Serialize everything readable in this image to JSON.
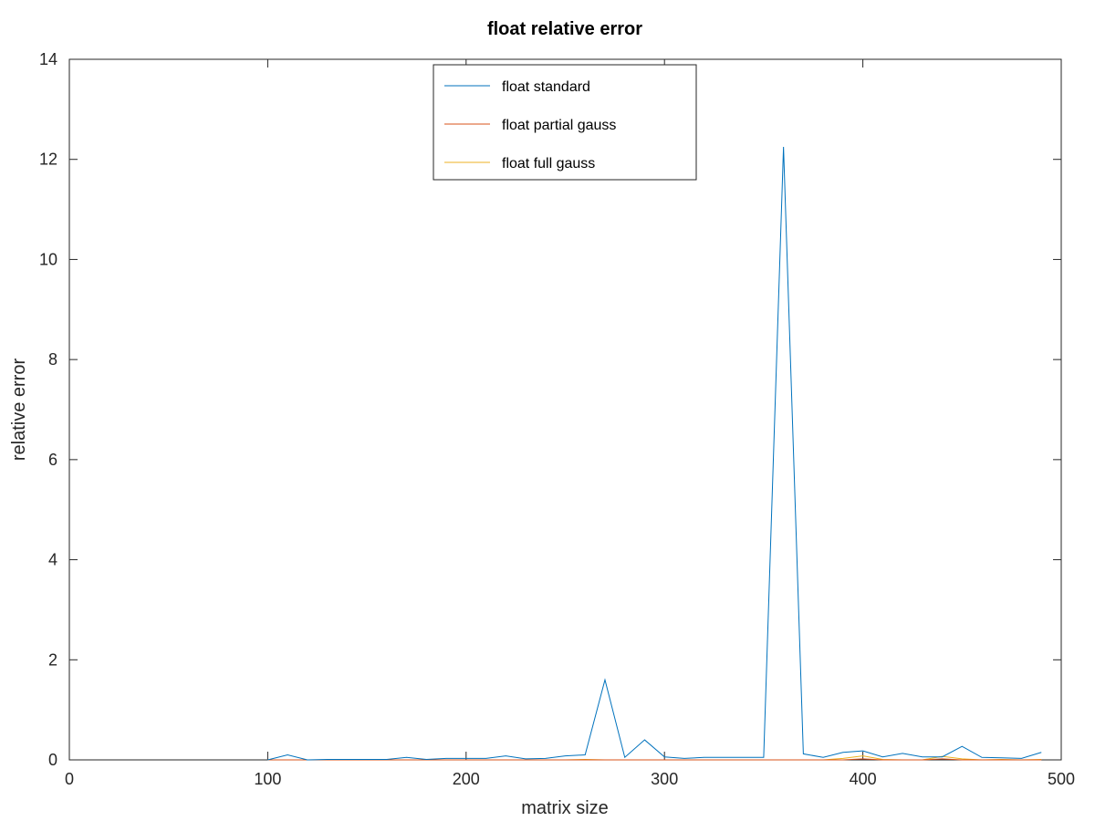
{
  "chart_data": {
    "type": "line",
    "title": "float relative error",
    "xlabel": "matrix size",
    "ylabel": "relative error",
    "xlim": [
      0,
      500
    ],
    "ylim": [
      0,
      14
    ],
    "xticks": [
      0,
      100,
      200,
      300,
      400,
      500
    ],
    "yticks": [
      0,
      2,
      4,
      6,
      8,
      10,
      12,
      14
    ],
    "xtick_labels": [
      "0",
      "100",
      "200",
      "300",
      "400",
      "500"
    ],
    "ytick_labels": [
      "0",
      "2",
      "4",
      "6",
      "8",
      "10",
      "12",
      "14"
    ],
    "grid": false,
    "legend_position": "top-center",
    "x": [
      100,
      110,
      120,
      130,
      140,
      150,
      160,
      170,
      180,
      190,
      200,
      210,
      220,
      230,
      240,
      250,
      260,
      270,
      280,
      290,
      300,
      310,
      320,
      330,
      340,
      350,
      360,
      370,
      380,
      390,
      400,
      410,
      420,
      430,
      440,
      450,
      460,
      470,
      480,
      490
    ],
    "series": [
      {
        "name": "float standard",
        "color": "#0072bd",
        "values": [
          0.0,
          0.1,
          0.0,
          0.01,
          0.01,
          0.01,
          0.01,
          0.05,
          0.01,
          0.03,
          0.03,
          0.03,
          0.08,
          0.02,
          0.03,
          0.08,
          0.1,
          1.6,
          0.05,
          0.4,
          0.06,
          0.03,
          0.05,
          0.05,
          0.05,
          0.05,
          12.25,
          0.12,
          0.05,
          0.15,
          0.18,
          0.06,
          0.13,
          0.06,
          0.06,
          0.27,
          0.05,
          0.04,
          0.03,
          0.15
        ]
      },
      {
        "name": "float partial gauss",
        "color": "#d95319",
        "values": [
          0.0,
          0.0,
          0.0,
          0.0,
          0.0,
          0.0,
          0.0,
          0.0,
          0.0,
          0.0,
          0.0,
          0.0,
          0.0,
          0.0,
          0.0,
          0.0,
          0.0,
          0.0,
          0.0,
          0.0,
          0.0,
          0.0,
          0.0,
          0.0,
          0.0,
          0.0,
          0.0,
          0.0,
          0.0,
          0.0,
          0.02,
          0.0,
          0.0,
          0.0,
          0.02,
          0.0,
          0.0,
          0.0,
          0.0,
          0.0
        ]
      },
      {
        "name": "float full gauss",
        "color": "#edb120",
        "values": [
          0.0,
          0.0,
          0.0,
          0.0,
          0.0,
          0.0,
          0.0,
          0.0,
          0.0,
          0.0,
          0.0,
          0.0,
          0.0,
          0.0,
          0.0,
          0.0,
          0.01,
          0.0,
          0.0,
          0.0,
          0.0,
          0.0,
          0.0,
          0.0,
          0.0,
          0.0,
          0.0,
          0.0,
          0.0,
          0.03,
          0.08,
          0.01,
          0.0,
          0.0,
          0.07,
          0.02,
          0.0,
          0.01,
          0.0,
          0.01
        ]
      }
    ]
  }
}
